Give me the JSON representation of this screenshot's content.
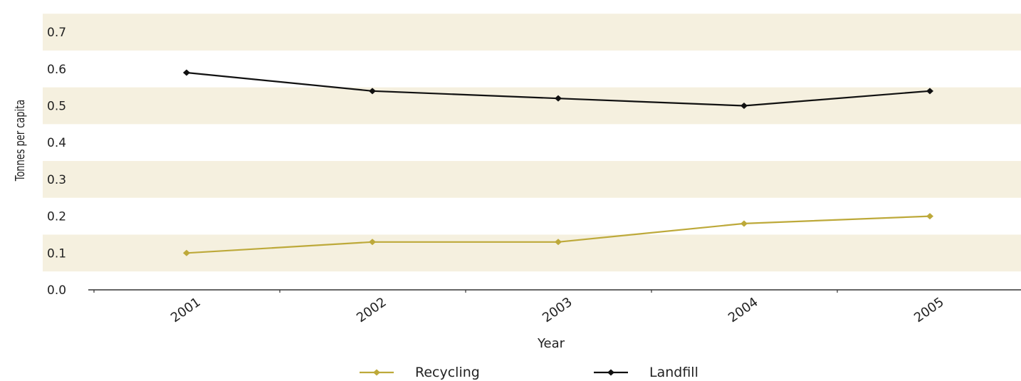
{
  "chart_data": {
    "type": "line",
    "title": "",
    "xlabel": "Year",
    "ylabel": "Tonnes per capita",
    "categories": [
      "2001",
      "2002",
      "2003",
      "2004",
      "2005"
    ],
    "y_ticks": [
      "0.0",
      "0.1",
      "0.2",
      "0.3",
      "0.4",
      "0.5",
      "0.6",
      "0.7"
    ],
    "ylim": [
      0,
      0.7
    ],
    "legend_position": "bottom-center",
    "band_color": "#f5f0df",
    "series": [
      {
        "name": "Recycling",
        "values": [
          0.1,
          0.13,
          0.13,
          0.18,
          0.2
        ],
        "color": "#bda93a"
      },
      {
        "name": "Landfill",
        "values": [
          0.59,
          0.54,
          0.52,
          0.5,
          0.54
        ],
        "color": "#111111"
      }
    ]
  }
}
